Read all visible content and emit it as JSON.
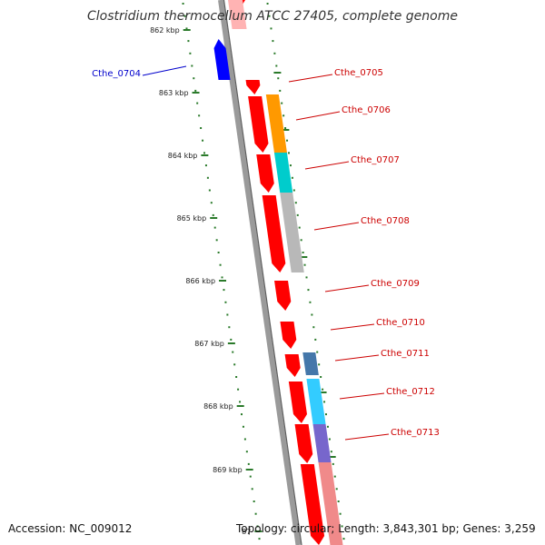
{
  "title": "Clostridium thermocellum ATCC 27405, complete genome",
  "footer": {
    "accession": "Accession: NC_009012",
    "topology": "Topology: circular; Length: 3,843,301 bp; Genes: 3,259"
  },
  "ruler": {
    "ticks": [
      "862 kbp",
      "863 kbp",
      "864 kbp",
      "865 kbp",
      "866 kbp",
      "867 kbp",
      "868 kbp",
      "869 kbp",
      "87"
    ]
  },
  "colors": {
    "forward_gene": "#ff0000",
    "reverse_gene": "#0000ff",
    "forward_label": "#cc0000",
    "reverse_label": "#0000cc",
    "backbone": "#8c8c8c",
    "tick": "#2a7a2a"
  },
  "genes": [
    {
      "name": "Cthe_0704",
      "strand": "reverse",
      "cog_color": ""
    },
    {
      "name": "Cthe_0705",
      "strand": "forward",
      "cog_color": ""
    },
    {
      "name": "Cthe_0706",
      "strand": "forward",
      "cog_color": "#ff9900"
    },
    {
      "name": "Cthe_0707",
      "strand": "forward",
      "cog_color": "#00cccc"
    },
    {
      "name": "Cthe_0708",
      "strand": "forward",
      "cog_color": "#b8b8b8"
    },
    {
      "name": "Cthe_0709",
      "strand": "forward",
      "cog_color": ""
    },
    {
      "name": "Cthe_0710",
      "strand": "forward",
      "cog_color": ""
    },
    {
      "name": "Cthe_0711",
      "strand": "forward",
      "cog_color": "#4477aa"
    },
    {
      "name": "Cthe_0712",
      "strand": "forward",
      "cog_color": "#33ccff"
    },
    {
      "name": "Cthe_0713",
      "strand": "forward",
      "cog_color": "#7766cc"
    }
  ]
}
